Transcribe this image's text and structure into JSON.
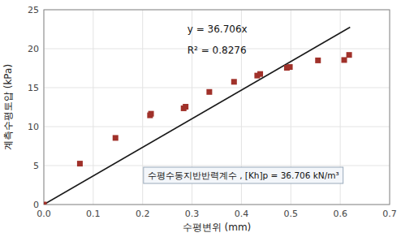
{
  "chart_data": {
    "type": "scatter",
    "xlabel": "수평변위 (mm)",
    "ylabel": "계측수평토압 (kPa)",
    "annotations": [
      "y = 36.706x",
      "R² = 0.8276",
      "수평수동지반반력계수 ,  [Kh]p = 36.706 kN/m³"
    ],
    "series": [
      {
        "type": "scatter",
        "marker": "square",
        "color": "#a0312a",
        "x": [
          0.073,
          0.145,
          0.215,
          0.217,
          0.283,
          0.287,
          0.335,
          0.385,
          0.432,
          0.438,
          0.492,
          0.498,
          0.555,
          0.608,
          0.618
        ],
        "values": [
          5.25,
          8.55,
          11.45,
          11.65,
          12.35,
          12.55,
          14.45,
          15.75,
          16.55,
          16.75,
          17.55,
          17.65,
          18.5,
          18.55,
          19.2
        ]
      },
      {
        "type": "scatter",
        "marker": "square",
        "color": "#a0312a",
        "x": [
          0.0
        ],
        "values": [
          0.0
        ]
      },
      {
        "type": "line",
        "line_style": "solid",
        "color": "#1a1a1a",
        "x": [
          0.0,
          0.62
        ],
        "values": [
          0,
          22.75772
        ]
      }
    ],
    "xlim": [
      0.0,
      0.7
    ],
    "ylim": [
      0,
      25
    ],
    "xticks": [
      {
        "value": 0.0,
        "label": "0.0"
      },
      0.1,
      0.2,
      0.3,
      0.4,
      0.5,
      0.6,
      0.7
    ],
    "yticks": [
      0,
      5,
      10,
      15,
      20,
      25
    ],
    "grid": true
  }
}
